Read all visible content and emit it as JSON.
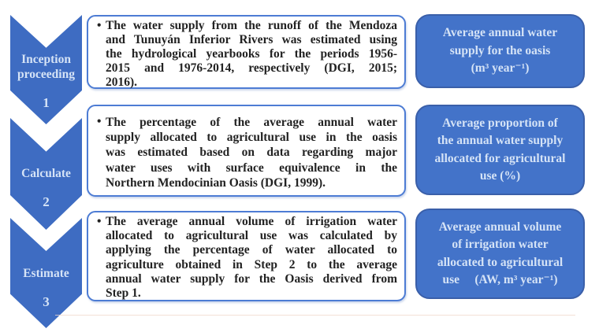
{
  "diagram": {
    "bullet_glyph": "•",
    "colors": {
      "chevron_fill": "#3E6CC2",
      "output_box_fill": "#4373C9",
      "output_box_border": "#3A5FA9",
      "description_box_border": "#4D7CD4",
      "light_text": "#D5E3F6",
      "body_text": "#222222"
    },
    "steps": [
      {
        "stage_label": "Inception proceeding",
        "stage_number": "1",
        "description_lines": [
          "The water supply from the runoff of the Mendoza",
          "and Tunuyán Inferior Rivers was estimated using",
          "the hydrological yearbooks for the periods 1956-",
          "2015 and 1976-2014, respectively (DGI, 2015;",
          "2016)."
        ],
        "output_lines": [
          "Average annual water",
          "supply for the oasis",
          "(m³ year⁻¹)"
        ]
      },
      {
        "stage_label": "Calculate",
        "stage_number": "2",
        "description_lines": [
          "The percentage of the average annual water",
          "supply allocated to agricultural use in the oasis",
          "was estimated based on data regarding major",
          "water uses with surface equivalence in the",
          "Northern Mendocinian Oasis (DGI, 1999)."
        ],
        "output_lines": [
          "Average proportion of",
          "the annual water supply",
          "allocated for agricultural",
          "use (%)"
        ]
      },
      {
        "stage_label": "Estimate",
        "stage_number": "3",
        "description_lines": [
          "The average annual volume of irrigation water",
          "allocated to agricultural use was calculated by",
          "applying the percentage of water allocated to",
          "agriculture obtained in Step 2 to the average",
          "annual water supply for the Oasis derived from",
          "Step 1."
        ],
        "output_lines": [
          "Average annual volume",
          "of irrigation water",
          "allocated to agricultural",
          "use     (AW, m³ year⁻¹)"
        ]
      }
    ]
  }
}
